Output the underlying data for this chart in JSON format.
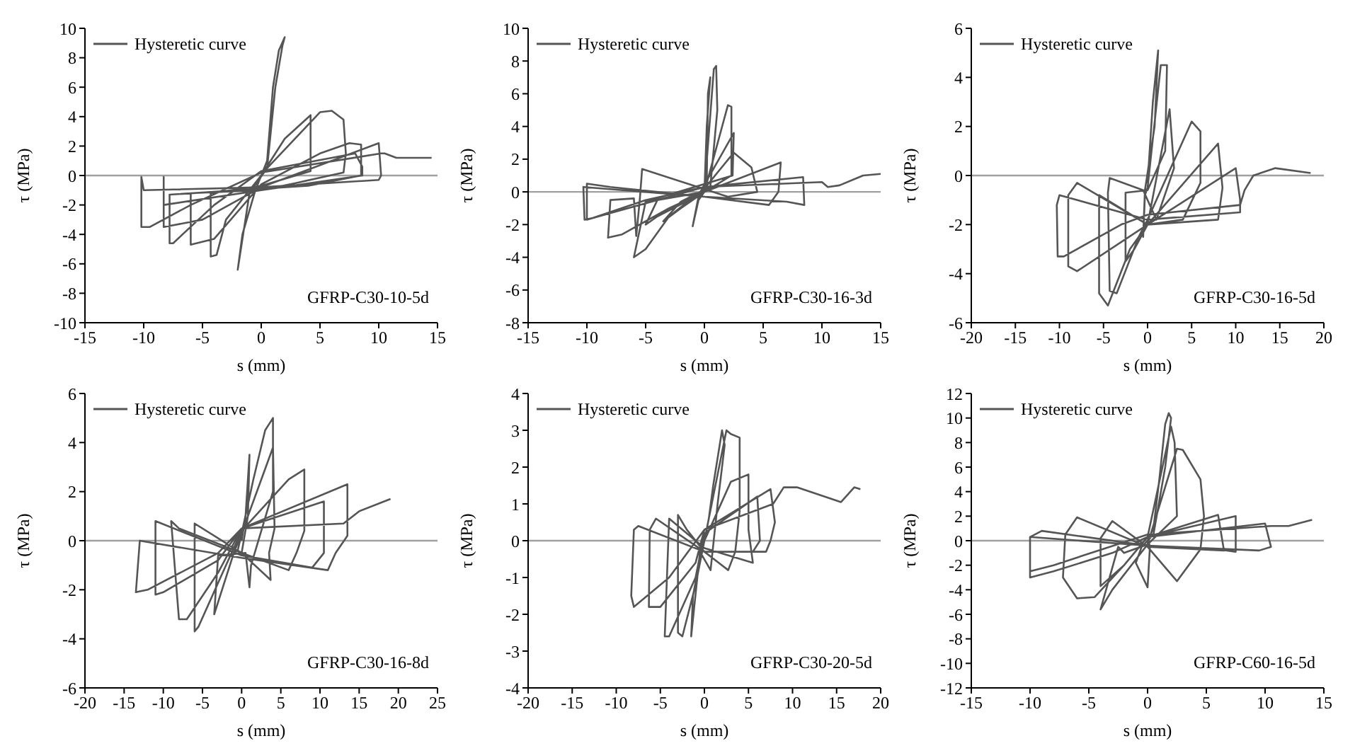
{
  "chart_data": [
    {
      "type": "line",
      "xlabel": "s (mm)",
      "ylabel": "τ (MPa)",
      "legend": "top left",
      "marker": "none",
      "xlim": [
        -15,
        15
      ],
      "xticks": [
        -15,
        -10,
        -5,
        0,
        5,
        10,
        15
      ],
      "ylim": [
        -10,
        10
      ],
      "yticks": [
        -10,
        -8,
        -6,
        -4,
        -2,
        0,
        2,
        4,
        6,
        8,
        10
      ],
      "ref_lines": [
        {
          "axis": "y",
          "value": 0,
          "color": "#a0a0a0"
        }
      ],
      "annotations": [
        "GFRP-C30-10-5d"
      ],
      "series": [
        {
          "name": "Hysteretic curve",
          "color": "#555555",
          "x": [
            0,
            0.5,
            1,
            1.5,
            2,
            1.8,
            1.2,
            0.5,
            -0.3,
            -1,
            -2,
            -1.6,
            -0.5,
            0,
            2,
            4.2,
            4.2,
            0,
            -4.3,
            -4.3,
            -3.8,
            -3,
            -1,
            0.5,
            5,
            6,
            7,
            7.2,
            7,
            3,
            0,
            -6,
            -6,
            -4,
            0,
            5,
            7.5,
            8.5,
            8.5,
            4,
            -7.8,
            -7.8,
            -7.5,
            -4,
            0,
            8,
            8.6,
            8.6,
            0,
            -8.3,
            -8.3,
            -8.3,
            -5,
            0,
            10,
            10.2,
            10,
            0,
            -10,
            -10.2,
            -10.2,
            -9.5,
            -6,
            0,
            10.2,
            10.5,
            11.5,
            14.5
          ],
          "values": [
            0,
            1,
            6,
            8.5,
            9.4,
            8.8,
            6,
            0.5,
            -0.4,
            -1.2,
            -6.4,
            -4,
            -1,
            0,
            2.5,
            4.1,
            0.3,
            -0.7,
            -1.2,
            -5.5,
            -5.4,
            -3,
            -1,
            0.5,
            4.3,
            4.4,
            3.8,
            1.5,
            0.2,
            -0.5,
            -1,
            -1.2,
            -4.7,
            -4.3,
            -0.6,
            1.5,
            2.2,
            2.1,
            0,
            -0.7,
            -1.3,
            -4.6,
            -4.6,
            -2,
            0.3,
            1.5,
            0.6,
            0,
            -1,
            -2,
            -0.1,
            -3.5,
            -3,
            -0.8,
            2.2,
            0,
            -0.3,
            -0.8,
            -1,
            -0.1,
            -3.5,
            -3.5,
            -2,
            0.2,
            1.5,
            1.5,
            1.2,
            1.2
          ]
        }
      ]
    },
    {
      "type": "line",
      "xlabel": "s (mm)",
      "ylabel": "τ (MPa)",
      "legend": "top left",
      "marker": "none",
      "xlim": [
        -15,
        15
      ],
      "xticks": [
        -15,
        -10,
        -5,
        0,
        5,
        10,
        15
      ],
      "ylim": [
        -8,
        10
      ],
      "yticks": [
        -8,
        -6,
        -4,
        -2,
        0,
        2,
        4,
        6,
        8,
        10
      ],
      "ref_lines": [
        {
          "axis": "y",
          "value": 0,
          "color": "#a0a0a0"
        }
      ],
      "annotations": [
        "GFRP-C30-16-3d"
      ],
      "series": [
        {
          "name": "Hysteretic curve",
          "color": "#555555",
          "x": [
            0,
            0.2,
            0.5,
            0.3,
            0.2,
            -0.5,
            -1,
            -0.5,
            0,
            0.8,
            1,
            1.1,
            0.5,
            -2,
            -3.5,
            -2,
            0,
            2,
            2.3,
            2.3,
            0,
            -4,
            -5,
            -4,
            -0.5,
            2.5,
            2.4,
            -5,
            -6,
            -5,
            -3,
            0,
            2.5,
            4,
            4.5,
            2,
            -5.3,
            -5.5,
            -5.8,
            -6,
            -8,
            -8.2,
            -7,
            -3,
            0,
            6.5,
            6.3,
            5.5,
            0,
            -8,
            -10,
            -10,
            -9,
            0,
            8.4,
            8.5,
            7,
            0,
            -10.3,
            -10.2,
            -9.5,
            -5,
            0,
            10,
            10.5,
            11.5,
            13.5,
            15
          ],
          "values": [
            0,
            4,
            7,
            6,
            0.5,
            -0.3,
            -2.1,
            -0.5,
            0,
            7.5,
            7.7,
            5,
            0.3,
            -0.6,
            -1.8,
            -1,
            0,
            5.3,
            5.2,
            1,
            0,
            -0.5,
            -2,
            -1.5,
            -0.2,
            3.6,
            1,
            -0.6,
            -4,
            -3.5,
            -1.5,
            0.2,
            2.4,
            1.5,
            0,
            -0.3,
            1.4,
            -0.5,
            -2.7,
            -0.4,
            -0.5,
            -2.8,
            -2.6,
            -1,
            0,
            1.8,
            0,
            -0.8,
            -0.3,
            0.3,
            0.5,
            -1.7,
            -1.5,
            0.3,
            0.9,
            -0.8,
            -0.6,
            -0.3,
            0.3,
            -1.7,
            -1.6,
            -0.5,
            0.3,
            0.6,
            0.3,
            0.4,
            1,
            1.1
          ]
        }
      ]
    },
    {
      "type": "line",
      "xlabel": "s (mm)",
      "ylabel": "τ (MPa)",
      "legend": "top left",
      "marker": "none",
      "xlim": [
        -20,
        20
      ],
      "xticks": [
        -20,
        -15,
        -10,
        -5,
        0,
        5,
        10,
        15,
        20
      ],
      "ylim": [
        -6,
        6
      ],
      "yticks": [
        -6,
        -4,
        -2,
        0,
        2,
        4,
        6
      ],
      "ref_lines": [
        {
          "axis": "y",
          "value": 0,
          "color": "#a0a0a0"
        }
      ],
      "annotations": [
        "GFRP-C30-16-5d"
      ],
      "series": [
        {
          "name": "Hysteretic curve",
          "color": "#555555",
          "x": [
            0,
            0.6,
            1.2,
            0.8,
            -0.3,
            -0.5,
            -0.3,
            0,
            1.5,
            2.2,
            2,
            0,
            -2.5,
            -2.5,
            -1.5,
            0,
            2.5,
            3,
            1,
            -0.5,
            -4.3,
            -4.5,
            -4.3,
            -3.5,
            -1,
            0,
            5,
            6,
            6,
            4,
            0,
            -5.5,
            -5.5,
            -4.5,
            -2,
            0,
            8,
            8.5,
            8,
            0,
            -8,
            -9,
            -9,
            -8,
            0,
            10,
            10.5,
            10.5,
            0,
            -10,
            -10.3,
            -10.2,
            -9.5,
            -3,
            0,
            10.5,
            11,
            12,
            14.5,
            18.5
          ],
          "values": [
            -0.3,
            3,
            5.1,
            2,
            -0.6,
            -2.5,
            -0.8,
            -0.5,
            4.5,
            4.5,
            1,
            -0.6,
            -0.7,
            -3.5,
            -3,
            -2,
            2.7,
            0.3,
            -1.8,
            -0.6,
            -0.1,
            -0.7,
            -4.7,
            -4.8,
            -2.5,
            -1.8,
            2.2,
            1.8,
            -0.3,
            -1.8,
            -2,
            -0.8,
            -4.8,
            -5.3,
            -3,
            -2,
            1.3,
            -0.5,
            -1.8,
            -2,
            -0.3,
            -0.8,
            -3.7,
            -3.9,
            -2,
            0.3,
            -1,
            -1.5,
            -1.8,
            -0.8,
            -1.2,
            -3.3,
            -3.3,
            -2,
            -1.6,
            -1.2,
            -0.6,
            0,
            0.3,
            0.1
          ]
        }
      ]
    },
    {
      "type": "line",
      "xlabel": "s (mm)",
      "ylabel": "τ (MPa)",
      "legend": "top left",
      "marker": "none",
      "xlim": [
        -20,
        25
      ],
      "xticks": [
        -20,
        -15,
        -10,
        -5,
        0,
        5,
        10,
        15,
        20,
        25
      ],
      "ylim": [
        -6,
        6
      ],
      "yticks": [
        -6,
        -4,
        -2,
        0,
        2,
        4,
        6
      ],
      "ref_lines": [
        {
          "axis": "y",
          "value": 0,
          "color": "#a0a0a0"
        }
      ],
      "annotations": [
        "GFRP-C30-16-8d"
      ],
      "series": [
        {
          "name": "Hysteretic curve",
          "color": "#555555",
          "x": [
            0,
            0.5,
            1,
            0.8,
            0,
            -0.5,
            0,
            1.5,
            3,
            4,
            4,
            1.2,
            1,
            0.5,
            -3,
            -3.5,
            -3,
            -1,
            0,
            4,
            4.2,
            3.5,
            3.7,
            0,
            -6,
            -6,
            -5.5,
            -2,
            0,
            6,
            8,
            8,
            7,
            6,
            0,
            -8,
            -9,
            -8,
            -7,
            -3,
            0,
            10.5,
            10.5,
            9,
            0,
            -11,
            -11,
            -10,
            -3,
            0,
            13.5,
            13.5,
            12,
            11,
            0,
            -13,
            -13.5,
            -12,
            -3,
            0,
            13,
            15,
            19
          ],
          "values": [
            0,
            1,
            3.5,
            1,
            -0.5,
            -0.4,
            0.3,
            2.5,
            4.5,
            5,
            2,
            -1,
            -1.9,
            -0.5,
            -0.6,
            -3,
            -2.5,
            -0.5,
            0.3,
            3.8,
            0.5,
            -0.5,
            -1.6,
            -0.5,
            0.7,
            -3.7,
            -3.5,
            -1,
            0.4,
            2.5,
            2.9,
            0.4,
            -0.5,
            -1.2,
            -0.5,
            0.5,
            0.8,
            -3.2,
            -3.2,
            -1.3,
            0.5,
            1.6,
            -0.5,
            -1.1,
            -0.6,
            0.8,
            -2.2,
            -2.1,
            -0.8,
            0.5,
            2.3,
            0.2,
            -0.5,
            -1.2,
            -0.7,
            0,
            -2.1,
            -2,
            -0.5,
            0.5,
            0.7,
            1.2,
            1.7
          ]
        }
      ]
    },
    {
      "type": "line",
      "xlabel": "s (mm)",
      "ylabel": "τ (MPa)",
      "legend": "top left",
      "marker": "none",
      "xlim": [
        -20,
        20
      ],
      "xticks": [
        -20,
        -15,
        -10,
        -5,
        0,
        5,
        10,
        15,
        20
      ],
      "ylim": [
        -4,
        4
      ],
      "yticks": [
        -4,
        -3,
        -2,
        -1,
        0,
        1,
        2,
        3,
        4
      ],
      "ref_lines": [
        {
          "axis": "y",
          "value": 0,
          "color": "#a0a0a0"
        }
      ],
      "annotations": [
        "GFRP-C30-20-5d"
      ],
      "series": [
        {
          "name": "Hysteretic curve",
          "color": "#555555",
          "x": [
            0,
            0.5,
            1,
            2,
            2.3,
            1.5,
            0.7,
            -0.5,
            -1.5,
            -1.3,
            -0.5,
            0,
            2.5,
            3,
            4,
            4,
            3.5,
            2.7,
            0,
            -2,
            -3,
            -3,
            -2.5,
            -1,
            0,
            3,
            5,
            5,
            5.5,
            0,
            -4,
            -4.5,
            -4,
            -1,
            0,
            6,
            6.3,
            5.5,
            0,
            -5.5,
            -6.2,
            -6.3,
            -5,
            -1,
            0,
            7.5,
            8,
            7.5,
            7,
            0,
            -7.5,
            -8,
            -8.3,
            -8,
            -4,
            0,
            7.8,
            9,
            10.5,
            15.5,
            17,
            17.7
          ],
          "values": [
            0,
            0.6,
            1.5,
            3,
            2.6,
            1,
            -0.8,
            -0.3,
            -2.6,
            -1.5,
            -0.5,
            0,
            3,
            2.9,
            2.8,
            0.8,
            -0.3,
            -0.8,
            -0.3,
            0.3,
            0.7,
            -2.5,
            -2.6,
            -1.2,
            0,
            1.6,
            1.8,
            0.3,
            -0.6,
            -0.2,
            0.6,
            -2.6,
            -2.6,
            -1,
            0.2,
            1.2,
            0,
            -0.3,
            -0.3,
            0.6,
            0.3,
            -1.8,
            -1.8,
            -0.6,
            0.3,
            1.4,
            0.5,
            0,
            -0.3,
            -0.3,
            0.4,
            0.3,
            -1.5,
            -1.8,
            -1,
            0.3,
            1,
            1.45,
            1.45,
            1.05,
            1.45,
            1.4
          ]
        }
      ]
    },
    {
      "type": "line",
      "xlabel": "s (mm)",
      "ylabel": "τ (MPa)",
      "legend": "top left",
      "marker": "none",
      "xlim": [
        -15,
        15
      ],
      "xticks": [
        -15,
        -10,
        -5,
        0,
        5,
        10,
        15
      ],
      "ylim": [
        -12,
        12
      ],
      "yticks": [
        -12,
        -10,
        -8,
        -6,
        -4,
        -2,
        0,
        2,
        4,
        6,
        8,
        10,
        12
      ],
      "ref_lines": [
        {
          "axis": "y",
          "value": 0,
          "color": "#a0a0a0"
        }
      ],
      "annotations": [
        "GFRP-C60-16-5d"
      ],
      "series": [
        {
          "name": "Hysteretic curve",
          "color": "#555555",
          "x": [
            0,
            0.5,
            1,
            1.5,
            1.8,
            2,
            1.5,
            0.5,
            -0.5,
            -1,
            0,
            0.2,
            0,
            2,
            2.3,
            2.5,
            0,
            -2,
            -2.5,
            -4,
            -3,
            0,
            2.5,
            3,
            4.5,
            4.8,
            4.5,
            2.5,
            0,
            -3,
            -4,
            -4,
            -2,
            0,
            6,
            6.5,
            0,
            -6,
            -7,
            -7.2,
            -6,
            -4.5,
            -2,
            0,
            7.5,
            7.5,
            6,
            0,
            -9,
            -10,
            -10,
            -8,
            -3,
            0,
            10,
            10.5,
            9.5,
            0,
            -10,
            -10,
            -8,
            0,
            10.5,
            12,
            14
          ],
          "values": [
            0,
            1,
            5,
            9.5,
            10.4,
            10,
            6,
            0.5,
            -0.5,
            -1.8,
            -3.8,
            -0.5,
            0.3,
            9.3,
            8,
            2,
            -0.3,
            -1,
            -0.5,
            -5.6,
            -4,
            -0.3,
            7.5,
            7.4,
            5,
            2,
            -0.7,
            -3.3,
            -0.5,
            1.6,
            0.2,
            -3.7,
            -2,
            0.3,
            2.1,
            -0.8,
            -0.5,
            1.9,
            0.5,
            -3,
            -4.7,
            -4.6,
            -2,
            0.3,
            2,
            -0.9,
            -0.7,
            -0.4,
            0.8,
            0.3,
            -3,
            -2.5,
            -1,
            0.3,
            1.4,
            -0.5,
            -0.8,
            -0.4,
            0.3,
            -2.5,
            -2,
            0.5,
            1.2,
            1.2,
            1.7
          ]
        }
      ]
    }
  ]
}
